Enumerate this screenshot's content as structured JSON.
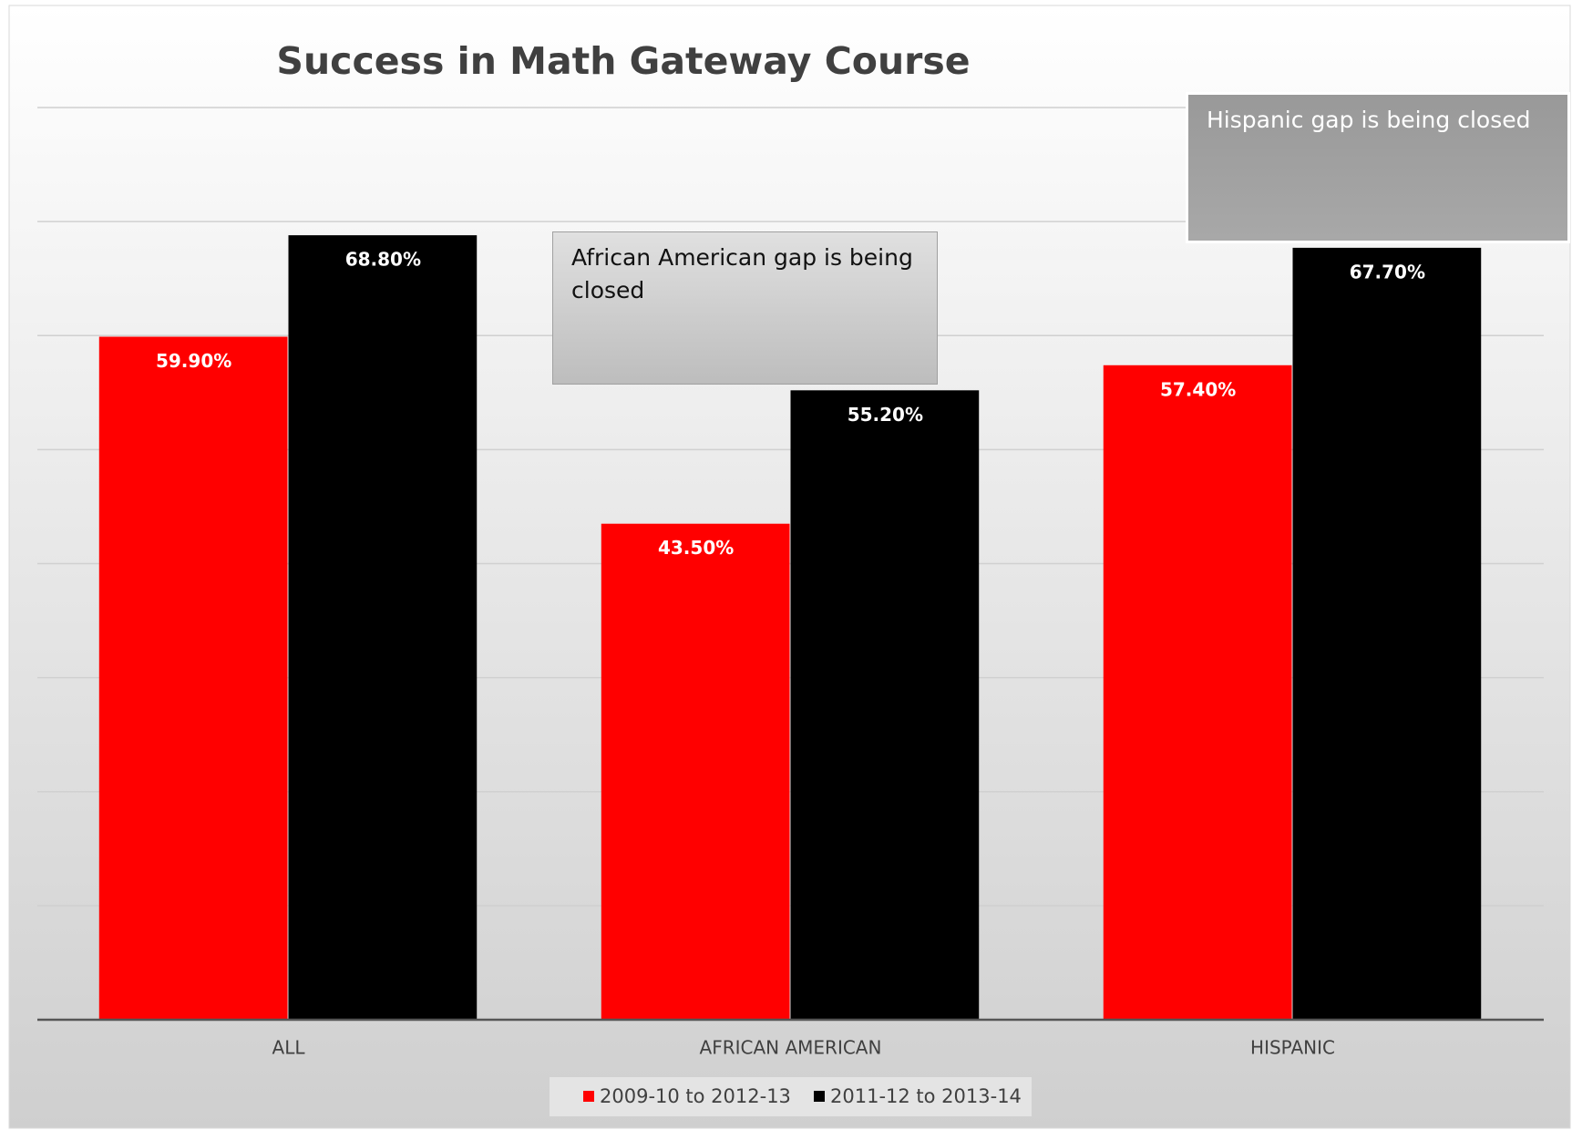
{
  "chart_data": {
    "type": "bar",
    "title": "Success in Math Gateway Course",
    "categories": [
      "ALL",
      "AFRICAN AMERICAN",
      "HISPANIC"
    ],
    "series": [
      {
        "name": "2009-10 to 2012-13",
        "color": "#ff0000",
        "values": [
          59.9,
          43.5,
          57.4
        ],
        "value_labels": [
          "59.90%",
          "43.50%",
          "57.40%"
        ]
      },
      {
        "name": "2011-12 to 2013-14",
        "color": "#000000",
        "values": [
          68.8,
          55.2,
          67.7
        ],
        "value_labels": [
          "68.80%",
          "55.20%",
          "67.70%"
        ]
      }
    ],
    "ylim": [
      0,
      80
    ],
    "yticks": [
      0,
      10,
      20,
      30,
      40,
      50,
      60,
      70,
      80
    ],
    "grid": true,
    "legend": "bottom",
    "annotations": [
      "African American gap is being closed",
      "Hispanic gap is being closed"
    ]
  }
}
